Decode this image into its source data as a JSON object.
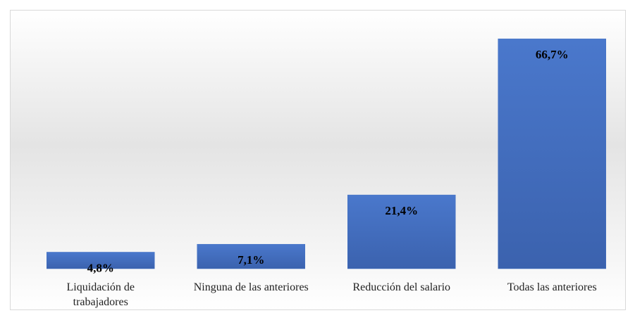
{
  "chart_data": {
    "type": "bar",
    "categories": [
      "Liquidación de trabajadores",
      "Ninguna de las anteriores",
      "Reducción del salario",
      "Todas las anteriores"
    ],
    "values": [
      4.8,
      7.1,
      21.4,
      66.7
    ],
    "value_labels": [
      "4,8%",
      "7,1%",
      "21,4%",
      "66,7%"
    ],
    "color": "#4472c4"
  }
}
